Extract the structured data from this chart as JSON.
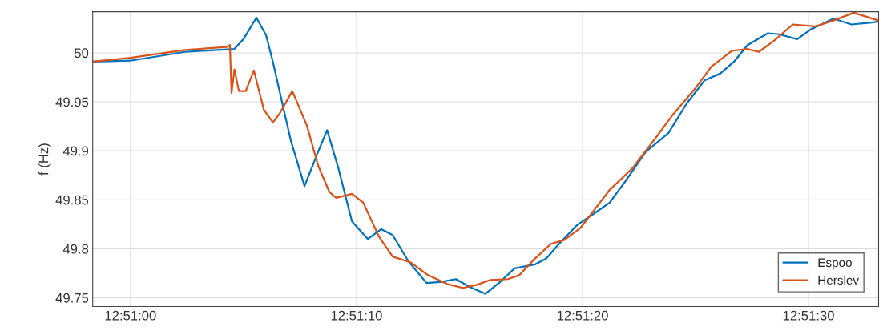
{
  "chart_data": {
    "type": "line",
    "ylabel": "f (Hz)",
    "xlim": [
      12.849536,
      12.859194
    ],
    "ylim": [
      49.741,
      50.042
    ],
    "xticks": [
      {
        "value": 12.85,
        "label": "12:51:00"
      },
      {
        "value": 12.852778,
        "label": "12:51:10"
      },
      {
        "value": 12.855556,
        "label": "12:51:20"
      },
      {
        "value": 12.858333,
        "label": "12:51:30"
      }
    ],
    "yticks": [
      49.75,
      49.8,
      49.85,
      49.9,
      49.95,
      50
    ],
    "grid": true,
    "legend": "bottom right",
    "line_style": "solid",
    "marker": "none",
    "series": [
      {
        "name": "Espoo",
        "color": "#0072bd",
        "x": [
          12.849536,
          12.85,
          12.850667,
          12.851278,
          12.851389,
          12.851547,
          12.851667,
          12.85175,
          12.851972,
          12.852139,
          12.852306,
          12.852417,
          12.852556,
          12.852722,
          12.852917,
          12.853083,
          12.853222,
          12.853417,
          12.853639,
          12.853806,
          12.854,
          12.854167,
          12.854361,
          12.854528,
          12.854722,
          12.854972,
          12.855111,
          12.855278,
          12.8555,
          12.855611,
          12.855889,
          12.856083,
          12.856333,
          12.856611,
          12.856833,
          12.857056,
          12.85725,
          12.857417,
          12.857583,
          12.857833,
          12.857972,
          12.858194,
          12.858361,
          12.858639,
          12.858861,
          12.859111,
          12.859194
        ],
        "values": [
          49.991,
          49.992,
          50.001,
          50.004,
          50.014,
          50.036,
          50.018,
          49.991,
          49.91,
          49.864,
          49.899,
          49.921,
          49.882,
          49.828,
          49.81,
          49.82,
          49.814,
          49.787,
          49.765,
          49.766,
          49.769,
          49.761,
          49.754,
          49.765,
          49.78,
          49.784,
          49.79,
          49.806,
          49.825,
          49.831,
          49.847,
          49.869,
          49.899,
          49.918,
          49.948,
          49.972,
          49.979,
          49.991,
          50.008,
          50.02,
          50.019,
          50.014,
          50.024,
          50.035,
          50.029,
          50.031,
          50.032
        ]
      },
      {
        "name": "Herslev",
        "color": "#d95319",
        "x": [
          12.849536,
          12.85,
          12.850667,
          12.851183,
          12.851222,
          12.851242,
          12.851278,
          12.851333,
          12.851417,
          12.851517,
          12.851639,
          12.85175,
          12.851833,
          12.851989,
          12.852167,
          12.852306,
          12.852444,
          12.852528,
          12.852722,
          12.852861,
          12.853056,
          12.853222,
          12.853444,
          12.853639,
          12.853889,
          12.854083,
          12.85425,
          12.854417,
          12.854639,
          12.854778,
          12.854972,
          12.855167,
          12.855333,
          12.855528,
          12.855889,
          12.856167,
          12.856444,
          12.856667,
          12.856944,
          12.857139,
          12.857389,
          12.857583,
          12.857722,
          12.857917,
          12.858139,
          12.858417,
          12.858639,
          12.858889,
          12.859194
        ],
        "values": [
          49.991,
          49.995,
          50.003,
          50.006,
          50.008,
          49.959,
          49.983,
          49.961,
          49.961,
          49.982,
          49.942,
          49.929,
          49.938,
          49.961,
          49.926,
          49.885,
          49.858,
          49.852,
          49.856,
          49.847,
          49.812,
          49.792,
          49.786,
          49.774,
          49.764,
          49.76,
          49.763,
          49.768,
          49.769,
          49.773,
          49.79,
          49.805,
          49.809,
          49.821,
          49.86,
          49.882,
          49.912,
          49.937,
          49.964,
          49.986,
          50.002,
          50.004,
          50.001,
          50.013,
          50.029,
          50.027,
          50.033,
          50.041,
          50.033
        ]
      }
    ]
  }
}
